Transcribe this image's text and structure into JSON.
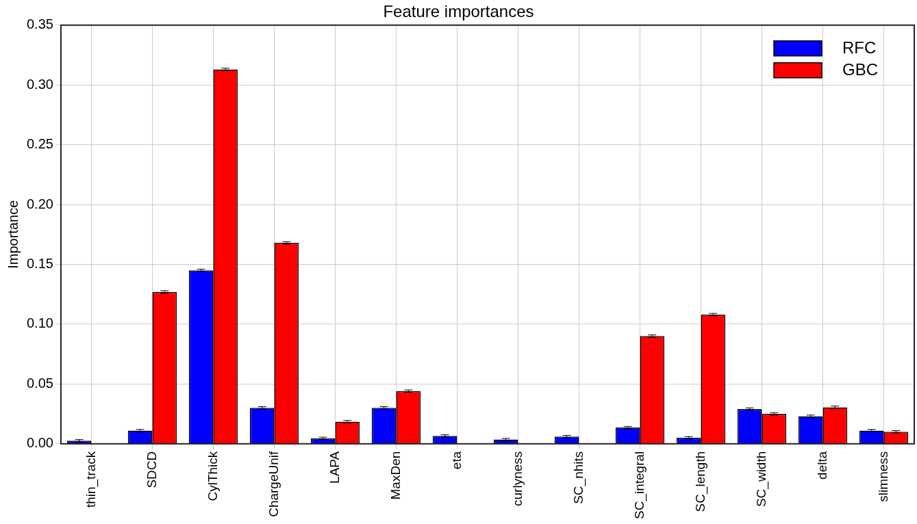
{
  "chart_data": {
    "type": "bar",
    "title": "Feature importances",
    "ylabel": "Importance",
    "categories": [
      "thin_track",
      "SDCD",
      "CylThick",
      "ChargeUnif",
      "LAPA",
      "MaxDen",
      "eta",
      "curlyness",
      "SC_nhits",
      "SC_integral",
      "SC_length",
      "SC_width",
      "delta",
      "slimness"
    ],
    "series": [
      {
        "name": "RFC",
        "color": "#0000ff",
        "values": [
          0.0025,
          0.011,
          0.145,
          0.03,
          0.0045,
          0.03,
          0.0065,
          0.0035,
          0.006,
          0.0135,
          0.005,
          0.029,
          0.023,
          0.011
        ],
        "errors": [
          0.001,
          0.001,
          0.001,
          0.001,
          0.001,
          0.001,
          0.001,
          0.001,
          0.001,
          0.001,
          0.001,
          0.001,
          0.001,
          0.001
        ]
      },
      {
        "name": "GBC",
        "color": "#ff0000",
        "values": [
          0,
          0.127,
          0.313,
          0.168,
          0.0185,
          0.044,
          0,
          0,
          0,
          0.09,
          0.108,
          0.025,
          0.0305,
          0.01
        ],
        "errors": [
          null,
          0.001,
          0.001,
          0.001,
          0.001,
          0.001,
          null,
          null,
          null,
          0.001,
          0.001,
          0.001,
          0.001,
          0.001
        ]
      }
    ],
    "ylim": [
      0,
      0.35
    ],
    "yticks": [
      {
        "value": 0,
        "label": "0.00"
      },
      0.05,
      {
        "value": 0.1,
        "label": "0.10"
      },
      0.15,
      {
        "value": 0.2,
        "label": "0.20"
      },
      0.25,
      {
        "value": 0.3,
        "label": "0.30"
      },
      0.35
    ],
    "grid": true,
    "legend": "top right"
  }
}
